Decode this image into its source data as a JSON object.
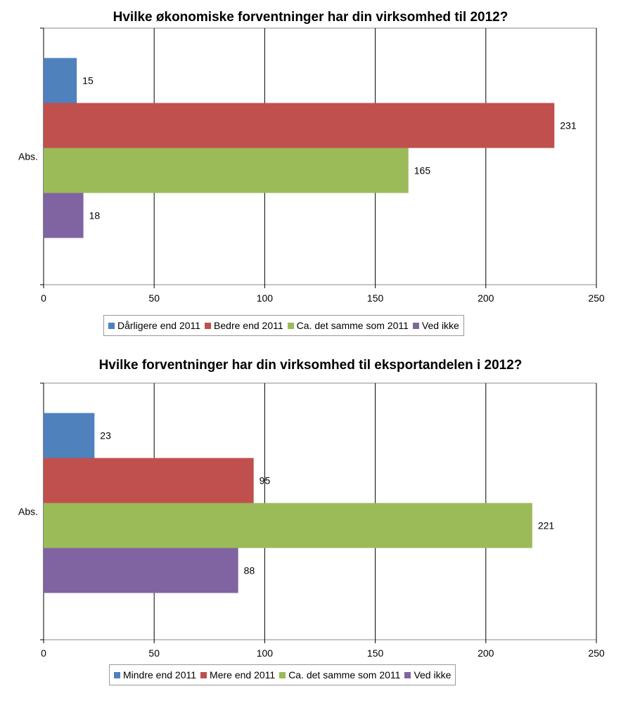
{
  "chart_data": [
    {
      "type": "bar",
      "orientation": "horizontal",
      "title": "Hvilke økonomiske forventninger har din virksomhed til 2012?",
      "categories": [
        "Abs."
      ],
      "series": [
        {
          "name": "Dårligere end 2011",
          "values": [
            15
          ],
          "color": "#4f81bd"
        },
        {
          "name": "Bedre end 2011",
          "values": [
            231
          ],
          "color": "#c0504d"
        },
        {
          "name": "Ca. det samme som 2011",
          "values": [
            165
          ],
          "color": "#9bbb59"
        },
        {
          "name": "Ved ikke",
          "values": [
            18
          ],
          "color": "#8064a2"
        }
      ],
      "xlim": [
        0,
        250
      ],
      "xticks": [
        0,
        50,
        100,
        150,
        200,
        250
      ],
      "grid": true,
      "legend": "bottom"
    },
    {
      "type": "bar",
      "orientation": "horizontal",
      "title": "Hvilke forventninger har din virksomhed til eksportandelen i 2012?",
      "categories": [
        "Abs."
      ],
      "series": [
        {
          "name": "Mindre end 2011",
          "values": [
            23
          ],
          "color": "#4f81bd"
        },
        {
          "name": "Mere end 2011",
          "values": [
            95
          ],
          "color": "#c0504d"
        },
        {
          "name": "Ca. det samme som 2011",
          "values": [
            221
          ],
          "color": "#9bbb59"
        },
        {
          "name": "Ved ikke",
          "values": [
            88
          ],
          "color": "#8064a2"
        }
      ],
      "xlim": [
        0,
        250
      ],
      "xticks": [
        0,
        50,
        100,
        150,
        200,
        250
      ],
      "grid": true,
      "legend": "bottom"
    }
  ]
}
